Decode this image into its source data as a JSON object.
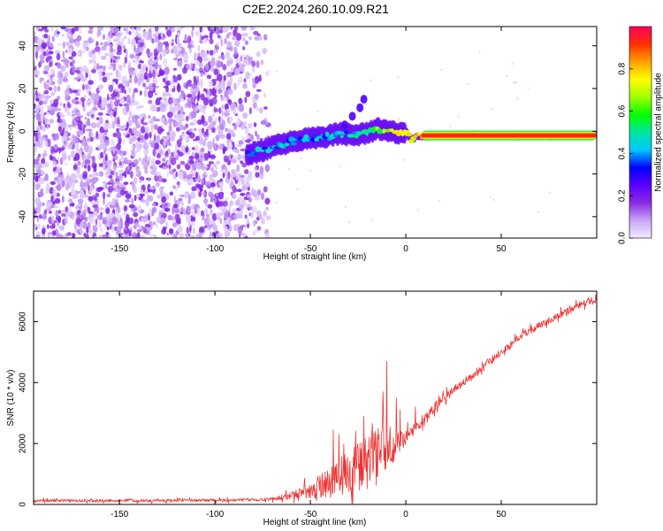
{
  "title": "C2E2.2024.260.10.09.R21",
  "chart_data": [
    {
      "type": "heatmap",
      "xlabel": "Height of straight line (km)",
      "ylabel": "Frequency (Hz)",
      "xlim": [
        -195,
        100
      ],
      "ylim": [
        -50,
        49
      ],
      "xticks": [
        -150,
        -100,
        -50,
        0,
        50
      ],
      "yticks": [
        -40,
        -20,
        0,
        20,
        40
      ],
      "colorbar": {
        "label": "Normalized spectral amplitude",
        "range": [
          0,
          1
        ],
        "ticks": [
          "0.0",
          "0.2",
          "0.4",
          "0.6",
          "0.8"
        ],
        "tick_values": [
          0.0,
          0.2,
          0.4,
          0.6,
          0.8
        ],
        "colors": [
          "#f2ebff",
          "#c9a6f5",
          "#8a2be2",
          "#5a00ff",
          "#0000ff",
          "#00c8ff",
          "#00e6a0",
          "#00ff00",
          "#a0ff00",
          "#ffff00",
          "#ffa000",
          "#ff3000",
          "#ff0060"
        ]
      },
      "noise_region": {
        "x": [
          -195,
          -72
        ],
        "y": [
          -50,
          49
        ],
        "amplitude": [
          0.02,
          0.15
        ]
      },
      "ridge": {
        "x": [
          -83,
          -75,
          -65,
          -55,
          -45,
          -35,
          -28,
          -22,
          -15,
          -8,
          -3,
          0,
          3,
          8,
          20,
          40,
          60,
          80,
          100
        ],
        "y": [
          -11,
          -9,
          -6,
          -4,
          -3,
          -1,
          -2,
          -1,
          1,
          0,
          -1,
          0,
          -4,
          -2,
          -2,
          -2,
          -2,
          -2,
          -2
        ],
        "amplitude": [
          0.35,
          0.4,
          0.4,
          0.38,
          0.4,
          0.42,
          0.45,
          0.5,
          0.6,
          0.7,
          0.8,
          0.75,
          0.7,
          0.85,
          0.92,
          0.95,
          0.96,
          0.97,
          0.95
        ]
      },
      "branch": {
        "x": [
          -32,
          -28,
          -24,
          -22
        ],
        "y": [
          3,
          7,
          11,
          15
        ]
      }
    },
    {
      "type": "line",
      "xlabel": "Height of straight line (km)",
      "ylabel": "SNR (10 * v/v)",
      "xlim": [
        -195,
        100
      ],
      "ylim": [
        0,
        7000
      ],
      "xticks": [
        -150,
        -100,
        -50,
        0,
        50
      ],
      "yticks": [
        0,
        2000,
        4000,
        6000
      ],
      "color": "#ee3333",
      "series": [
        {
          "name": "SNR",
          "x": [
            -195,
            -180,
            -160,
            -140,
            -120,
            -100,
            -90,
            -80,
            -75,
            -70,
            -65,
            -60,
            -55,
            -50,
            -45,
            -40,
            -35,
            -30,
            -25,
            -20,
            -15,
            -10,
            -5,
            0,
            5,
            10,
            15,
            20,
            25,
            30,
            40,
            50,
            60,
            70,
            80,
            90,
            100
          ],
          "y": [
            120,
            130,
            125,
            130,
            130,
            135,
            140,
            150,
            160,
            180,
            230,
            280,
            400,
            480,
            600,
            750,
            900,
            1050,
            1200,
            1400,
            1700,
            1900,
            1950,
            2200,
            2500,
            2800,
            3200,
            3500,
            3750,
            4000,
            4500,
            5000,
            5500,
            5900,
            6200,
            6500,
            6750
          ],
          "noise": [
            60,
            60,
            60,
            60,
            60,
            60,
            60,
            60,
            60,
            70,
            120,
            160,
            260,
            380,
            500,
            650,
            800,
            900,
            1000,
            1100,
            1050,
            900,
            600,
            300,
            220,
            200,
            200,
            180,
            170,
            160,
            150,
            150,
            150,
            150,
            150,
            150,
            150
          ],
          "spikes": [
            {
              "x": -10,
              "y": 4700
            },
            {
              "x": -12,
              "y": 3700
            },
            {
              "x": -22,
              "y": 2900
            },
            {
              "x": -38,
              "y": 2450
            },
            {
              "x": -35,
              "y": 2300
            },
            {
              "x": -5,
              "y": 3500
            },
            {
              "x": -3,
              "y": 3100
            },
            {
              "x": 5,
              "y": 3200
            }
          ]
        }
      ]
    }
  ]
}
